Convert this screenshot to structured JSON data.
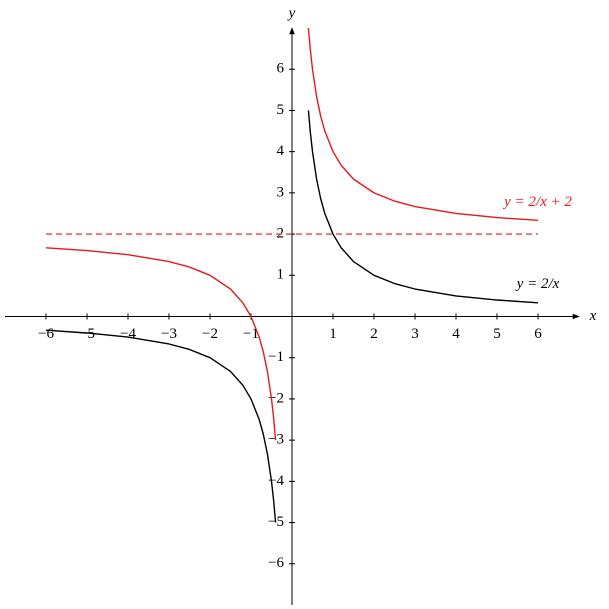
{
  "chart_data": {
    "type": "line",
    "x_label": "x",
    "y_label": "y",
    "x": [
      -6,
      -5,
      -4,
      -3,
      -2.5,
      -2,
      -1.5,
      -1.2,
      -1,
      -0.8,
      -0.7,
      -0.6,
      -0.5,
      -0.45,
      -0.4,
      0,
      0.4,
      0.45,
      0.5,
      0.6,
      0.7,
      0.8,
      1,
      1.2,
      1.5,
      2,
      2.5,
      3,
      4,
      5,
      6
    ],
    "series": [
      {
        "name": "y = 2/x",
        "color": "#000000",
        "values": [
          -0.333,
          -0.4,
          -0.5,
          -0.667,
          -0.8,
          -1,
          -1.333,
          -1.667,
          -2,
          -2.5,
          -2.857,
          -3.333,
          -4,
          -4.444,
          -5,
          null,
          5,
          4.444,
          4,
          3.333,
          2.857,
          2.5,
          2,
          1.667,
          1.333,
          1,
          0.8,
          0.667,
          0.5,
          0.4,
          0.333
        ]
      },
      {
        "name": "y = 2/x + 2",
        "color": "#e41a1c",
        "values": [
          1.667,
          1.6,
          1.5,
          1.333,
          1.2,
          1,
          0.667,
          0.333,
          0,
          -0.5,
          -0.857,
          -1.333,
          -2,
          -2.444,
          -3,
          null,
          7,
          6.444,
          6,
          5.333,
          4.857,
          4.5,
          4,
          3.667,
          3.333,
          3,
          2.8,
          2.667,
          2.5,
          2.4,
          2.333
        ]
      }
    ],
    "asymptote": {
      "y": 2,
      "x": [
        -6,
        6
      ],
      "color": "#e41a1c",
      "dashed": true
    },
    "xlim": [
      -7,
      7
    ],
    "ylim": [
      -7,
      7
    ],
    "xticks": [
      {
        "value": -6,
        "label": "−6"
      },
      {
        "value": -5,
        "label": "−5"
      },
      {
        "value": -4,
        "label": "−4"
      },
      {
        "value": -3,
        "label": "−3"
      },
      {
        "value": -2,
        "label": "−2"
      },
      {
        "value": -1,
        "label": "−1"
      },
      1,
      2,
      3,
      4,
      5,
      6
    ],
    "yticks": [
      {
        "value": -6,
        "label": "−6"
      },
      {
        "value": -5,
        "label": "−5"
      },
      {
        "value": -4,
        "label": "−4"
      },
      {
        "value": -3,
        "label": "−3"
      },
      {
        "value": -2,
        "label": "−2"
      },
      {
        "value": -1,
        "label": "−1"
      },
      1,
      2,
      3,
      4,
      5,
      6
    ],
    "grid": false
  }
}
